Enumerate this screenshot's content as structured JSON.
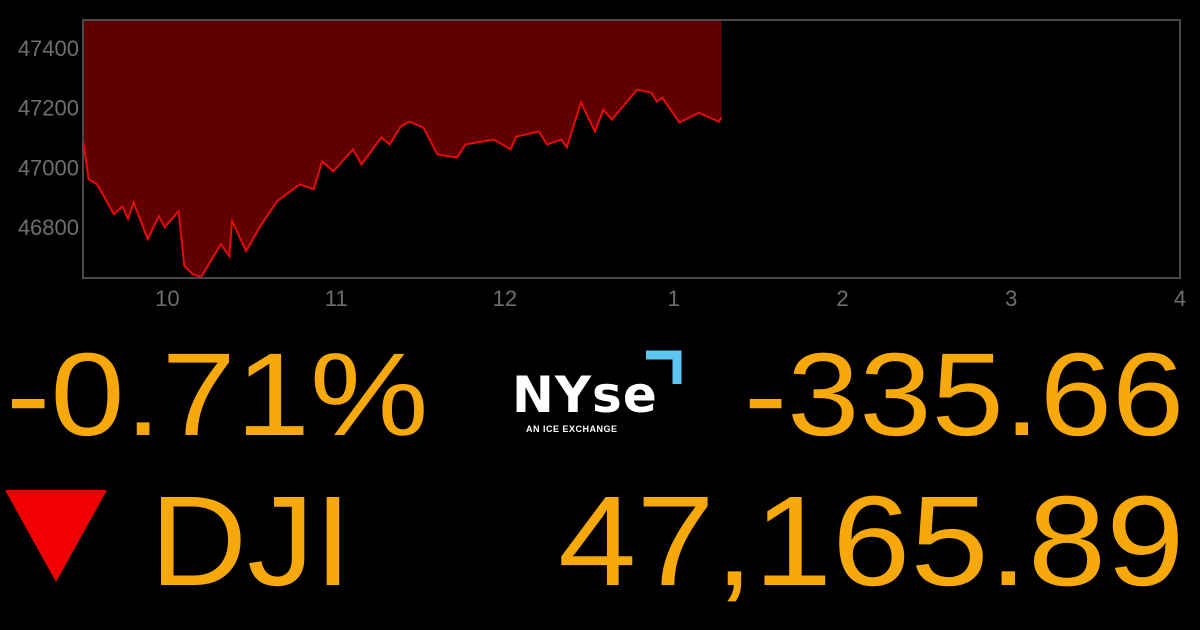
{
  "chart_data": {
    "type": "area",
    "x": [
      "9:30",
      "9:32",
      "9:35",
      "9:41",
      "9:44",
      "9:46",
      "9:48",
      "9:53",
      "9:57",
      "9:59",
      "10:04",
      "10:06",
      "10:09",
      "10:12",
      "10:19",
      "10:22",
      "10:23",
      "10:28",
      "10:33",
      "10:39",
      "10:47",
      "10:52",
      "10:55",
      "10:59",
      "11:06",
      "11:09",
      "11:16",
      "11:19",
      "11:23",
      "11:26",
      "11:31",
      "11:36",
      "11:43",
      "11:46",
      "11:56",
      "12:02",
      "12:04",
      "12:12",
      "12:15",
      "12:20",
      "12:22",
      "12:27",
      "12:32",
      "12:35",
      "12:38",
      "12:47",
      "12:52",
      "12:54",
      "12:56",
      "13:02",
      "13:09",
      "13:16",
      "13:17"
    ],
    "series": [
      {
        "values": [
          47093,
          46960,
          46943,
          46843,
          46870,
          46827,
          46883,
          46760,
          46837,
          46800,
          46853,
          46670,
          46643,
          46633,
          46743,
          46703,
          46820,
          46720,
          46803,
          46887,
          46943,
          46927,
          47020,
          46987,
          47060,
          47010,
          47100,
          47077,
          47137,
          47153,
          47133,
          47043,
          47033,
          47077,
          47093,
          47060,
          47103,
          47120,
          47077,
          47093,
          47067,
          47217,
          47120,
          47193,
          47160,
          47260,
          47250,
          47220,
          47233,
          47150,
          47183,
          47153,
          47167
        ]
      }
    ],
    "xlim": [
      "9:30",
      "16:00"
    ],
    "ylim": [
      46630,
      47493
    ],
    "x_ticks": [
      {
        "time": "10:00",
        "label": "10"
      },
      {
        "time": "11:00",
        "label": "11"
      },
      {
        "time": "12:00",
        "label": "12"
      },
      {
        "time": "13:00",
        "label": "1"
      },
      {
        "time": "14:00",
        "label": "2"
      },
      {
        "time": "15:00",
        "label": "3"
      },
      {
        "time": "16:00",
        "label": "4"
      }
    ],
    "y_ticks": [
      46800,
      47000,
      47200,
      47400
    ],
    "grid": false,
    "fill": "above-line",
    "colors": {
      "line": "#e50b0b",
      "fill": "#600000",
      "frame": "#4a4a4a",
      "tick": "#6e6e6e"
    }
  },
  "ticker": {
    "percent_change": "-0.71%",
    "point_change": "-335.66",
    "symbol": "DJI",
    "price": "47,165.89",
    "direction": "down",
    "direction_icon": "down-triangle-icon",
    "text_color": "#f7a90c",
    "down_color": "#f00000"
  },
  "logo": {
    "word": "NYSE",
    "tagline": "AN ICE EXCHANGE",
    "accent": "#5bc4f1"
  }
}
